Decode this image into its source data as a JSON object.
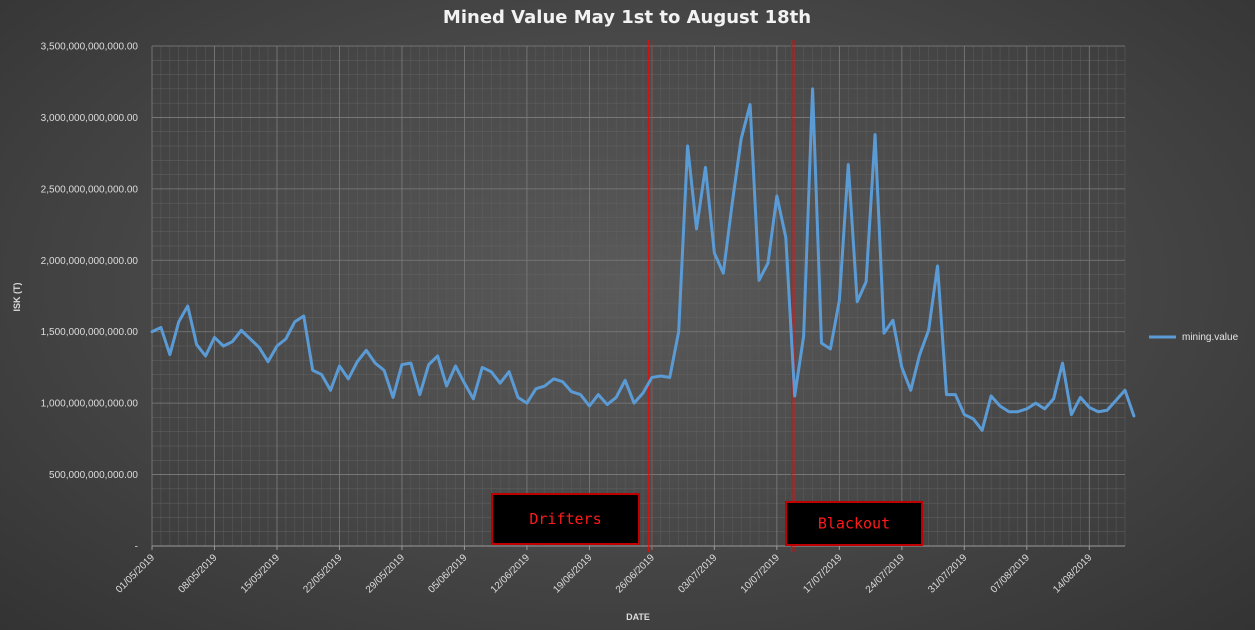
{
  "chart_data": {
    "type": "line",
    "title": "Mined Value May 1st to August 18th",
    "xlabel": "DATE",
    "ylabel": "ISK (T)",
    "ylim": [
      0,
      3500000000000
    ],
    "ytick_labels": [
      "-",
      "500,000,000,000.00",
      "1,000,000,000,000.00",
      "1,500,000,000,000.00",
      "2,000,000,000,000.00",
      "2,500,000,000,000.00",
      "3,000,000,000,000.00",
      "3,500,000,000,000.00"
    ],
    "x_start": "01/05/2019",
    "x_end": "18/08/2019",
    "xtick_labels": [
      "01/05/2019",
      "08/05/2019",
      "15/05/2019",
      "22/05/2019",
      "29/05/2019",
      "05/06/2019",
      "12/06/2019",
      "19/06/2019",
      "26/06/2019",
      "03/07/2019",
      "10/07/2019",
      "17/07/2019",
      "24/07/2019",
      "31/07/2019",
      "07/08/2019",
      "14/08/2019"
    ],
    "grid": true,
    "legend_position": "right",
    "series": [
      {
        "name": "mining.value",
        "color": "#5b9bd5",
        "values": [
          1500000000000,
          1530000000000,
          1340000000000,
          1570000000000,
          1680000000000,
          1410000000000,
          1330000000000,
          1460000000000,
          1400000000000,
          1430000000000,
          1510000000000,
          1450000000000,
          1390000000000,
          1290000000000,
          1400000000000,
          1450000000000,
          1570000000000,
          1610000000000,
          1230000000000,
          1200000000000,
          1090000000000,
          1260000000000,
          1170000000000,
          1290000000000,
          1370000000000,
          1280000000000,
          1230000000000,
          1040000000000,
          1270000000000,
          1280000000000,
          1060000000000,
          1270000000000,
          1330000000000,
          1120000000000,
          1260000000000,
          1140000000000,
          1030000000000,
          1250000000000,
          1220000000000,
          1140000000000,
          1220000000000,
          1040000000000,
          1000000000000,
          1100000000000,
          1120000000000,
          1170000000000,
          1150000000000,
          1080000000000,
          1060000000000,
          980000000000,
          1060000000000,
          990000000000,
          1040000000000,
          1160000000000,
          1000000000000,
          1070000000000,
          1180000000000,
          1190000000000,
          1180000000000,
          1500000000000,
          2800000000000,
          2220000000000,
          2650000000000,
          2050000000000,
          1910000000000,
          2400000000000,
          2850000000000,
          3090000000000,
          1860000000000,
          1980000000000,
          2450000000000,
          2160000000000,
          1050000000000,
          1470000000000,
          3200000000000,
          1420000000000,
          1380000000000,
          1720000000000,
          2670000000000,
          1710000000000,
          1850000000000,
          2880000000000,
          1490000000000,
          1580000000000,
          1250000000000,
          1090000000000,
          1340000000000,
          1510000000000,
          1960000000000,
          1060000000000,
          1060000000000,
          920000000000,
          890000000000,
          810000000000,
          1050000000000,
          980000000000,
          940000000000,
          940000000000,
          960000000000,
          1000000000000,
          960000000000,
          1030000000000,
          1280000000000,
          920000000000,
          1040000000000,
          970000000000,
          940000000000,
          950000000000,
          1020000000000,
          1090000000000,
          910000000000
        ]
      }
    ],
    "annotations": [
      {
        "label": "Drifters",
        "date": "26/06/2019",
        "color": "#ff0000"
      },
      {
        "label": "Blackout",
        "date": "12/07/2019",
        "color": "#ff0000"
      }
    ]
  }
}
